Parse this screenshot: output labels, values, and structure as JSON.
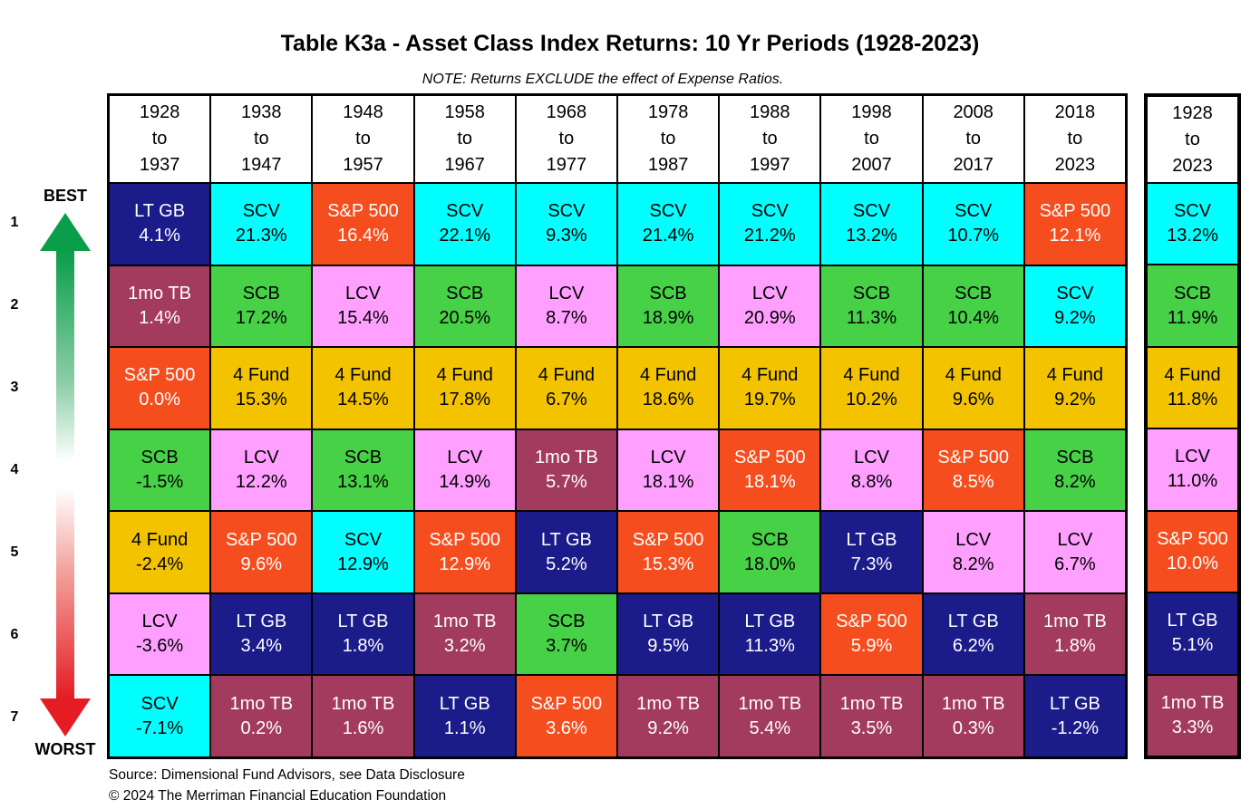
{
  "title": "Table K3a - Asset Class Index Returns: 10 Yr Periods (1928-2023)",
  "note": "NOTE: Returns EXCLUDE the effect of Expense Ratios.",
  "best_label": "BEST",
  "worst_label": "WORST",
  "ranks": [
    "1",
    "2",
    "3",
    "4",
    "5",
    "6",
    "7"
  ],
  "footer": {
    "source": "Source: Dimensional Fund Advisors, see Data Disclosure",
    "copyright": "© 2024 The Merriman Financial Education Foundation"
  },
  "asset_colors": {
    "LT GB": {
      "bg": "#1b1b8a",
      "fg": "#ffffff"
    },
    "1mo TB": {
      "bg": "#a33b5e",
      "fg": "#ffffff"
    },
    "S&P 500": {
      "bg": "#f64d1e",
      "fg": "#ffffff"
    },
    "SCV": {
      "bg": "#00ffff",
      "fg": "#000000"
    },
    "SCB": {
      "bg": "#47d147",
      "fg": "#000000"
    },
    "LCV": {
      "bg": "#ff9fff",
      "fg": "#000000"
    },
    "4 Fund": {
      "bg": "#f3c300",
      "fg": "#000000"
    }
  },
  "chart_data": {
    "type": "table",
    "title": "Table K3a - Asset Class Index Returns: 10 Yr Periods (1928-2023)",
    "note": "NOTE: Returns EXCLUDE the effect of Expense Ratios.",
    "rank_axis": {
      "best": "BEST",
      "worst": "WORST",
      "ranks": [
        1,
        2,
        3,
        4,
        5,
        6,
        7
      ]
    },
    "column_headers": [
      "1928 to 1937",
      "1938 to 1947",
      "1948 to 1957",
      "1958 to 1967",
      "1968 to 1977",
      "1978 to 1987",
      "1988 to 1997",
      "1998 to 2007",
      "2008 to 2017",
      "2018 to 2023"
    ],
    "summary_header": "1928 to 2023",
    "rows": [
      {
        "rank": "1",
        "cells": [
          {
            "asset": "LT GB",
            "value": "4.1%"
          },
          {
            "asset": "SCV",
            "value": "21.3%"
          },
          {
            "asset": "S&P 500",
            "value": "16.4%"
          },
          {
            "asset": "SCV",
            "value": "22.1%"
          },
          {
            "asset": "SCV",
            "value": "9.3%"
          },
          {
            "asset": "SCV",
            "value": "21.4%"
          },
          {
            "asset": "SCV",
            "value": "21.2%"
          },
          {
            "asset": "SCV",
            "value": "13.2%"
          },
          {
            "asset": "SCV",
            "value": "10.7%"
          },
          {
            "asset": "S&P 500",
            "value": "12.1%"
          }
        ],
        "summary": {
          "asset": "SCV",
          "value": "13.2%"
        }
      },
      {
        "rank": "2",
        "cells": [
          {
            "asset": "1mo TB",
            "value": "1.4%"
          },
          {
            "asset": "SCB",
            "value": "17.2%"
          },
          {
            "asset": "LCV",
            "value": "15.4%"
          },
          {
            "asset": "SCB",
            "value": "20.5%"
          },
          {
            "asset": "LCV",
            "value": "8.7%"
          },
          {
            "asset": "SCB",
            "value": "18.9%"
          },
          {
            "asset": "LCV",
            "value": "20.9%"
          },
          {
            "asset": "SCB",
            "value": "11.3%"
          },
          {
            "asset": "SCB",
            "value": "10.4%"
          },
          {
            "asset": "SCV",
            "value": "9.2%"
          }
        ],
        "summary": {
          "asset": "SCB",
          "value": "11.9%"
        }
      },
      {
        "rank": "3",
        "cells": [
          {
            "asset": "S&P 500",
            "value": "0.0%"
          },
          {
            "asset": "4 Fund",
            "value": "15.3%"
          },
          {
            "asset": "4 Fund",
            "value": "14.5%"
          },
          {
            "asset": "4 Fund",
            "value": "17.8%"
          },
          {
            "asset": "4 Fund",
            "value": "6.7%"
          },
          {
            "asset": "4 Fund",
            "value": "18.6%"
          },
          {
            "asset": "4 Fund",
            "value": "19.7%"
          },
          {
            "asset": "4 Fund",
            "value": "10.2%"
          },
          {
            "asset": "4 Fund",
            "value": "9.6%"
          },
          {
            "asset": "4 Fund",
            "value": "9.2%"
          }
        ],
        "summary": {
          "asset": "4 Fund",
          "value": "11.8%"
        }
      },
      {
        "rank": "4",
        "cells": [
          {
            "asset": "SCB",
            "value": "-1.5%"
          },
          {
            "asset": "LCV",
            "value": "12.2%"
          },
          {
            "asset": "SCB",
            "value": "13.1%"
          },
          {
            "asset": "LCV",
            "value": "14.9%"
          },
          {
            "asset": "1mo TB",
            "value": "5.7%"
          },
          {
            "asset": "LCV",
            "value": "18.1%"
          },
          {
            "asset": "S&P 500",
            "value": "18.1%"
          },
          {
            "asset": "LCV",
            "value": "8.8%"
          },
          {
            "asset": "S&P 500",
            "value": "8.5%"
          },
          {
            "asset": "SCB",
            "value": "8.2%"
          }
        ],
        "summary": {
          "asset": "LCV",
          "value": "11.0%"
        }
      },
      {
        "rank": "5",
        "cells": [
          {
            "asset": "4 Fund",
            "value": "-2.4%"
          },
          {
            "asset": "S&P 500",
            "value": "9.6%"
          },
          {
            "asset": "SCV",
            "value": "12.9%"
          },
          {
            "asset": "S&P 500",
            "value": "12.9%"
          },
          {
            "asset": "LT GB",
            "value": "5.2%"
          },
          {
            "asset": "S&P 500",
            "value": "15.3%"
          },
          {
            "asset": "SCB",
            "value": "18.0%"
          },
          {
            "asset": "LT GB",
            "value": "7.3%"
          },
          {
            "asset": "LCV",
            "value": "8.2%"
          },
          {
            "asset": "LCV",
            "value": "6.7%"
          }
        ],
        "summary": {
          "asset": "S&P 500",
          "value": "10.0%"
        }
      },
      {
        "rank": "6",
        "cells": [
          {
            "asset": "LCV",
            "value": "-3.6%"
          },
          {
            "asset": "LT GB",
            "value": "3.4%"
          },
          {
            "asset": "LT GB",
            "value": "1.8%"
          },
          {
            "asset": "1mo TB",
            "value": "3.2%"
          },
          {
            "asset": "SCB",
            "value": "3.7%"
          },
          {
            "asset": "LT GB",
            "value": "9.5%"
          },
          {
            "asset": "LT GB",
            "value": "11.3%"
          },
          {
            "asset": "S&P 500",
            "value": "5.9%"
          },
          {
            "asset": "LT GB",
            "value": "6.2%"
          },
          {
            "asset": "1mo TB",
            "value": "1.8%"
          }
        ],
        "summary": {
          "asset": "LT GB",
          "value": "5.1%"
        }
      },
      {
        "rank": "7",
        "cells": [
          {
            "asset": "SCV",
            "value": "-7.1%"
          },
          {
            "asset": "1mo TB",
            "value": "0.2%"
          },
          {
            "asset": "1mo TB",
            "value": "1.6%"
          },
          {
            "asset": "LT GB",
            "value": "1.1%"
          },
          {
            "asset": "S&P 500",
            "value": "3.6%"
          },
          {
            "asset": "1mo TB",
            "value": "9.2%"
          },
          {
            "asset": "1mo TB",
            "value": "5.4%"
          },
          {
            "asset": "1mo TB",
            "value": "3.5%"
          },
          {
            "asset": "1mo TB",
            "value": "0.3%"
          },
          {
            "asset": "LT GB",
            "value": "-1.2%"
          }
        ],
        "summary": {
          "asset": "1mo TB",
          "value": "3.3%"
        }
      }
    ]
  }
}
